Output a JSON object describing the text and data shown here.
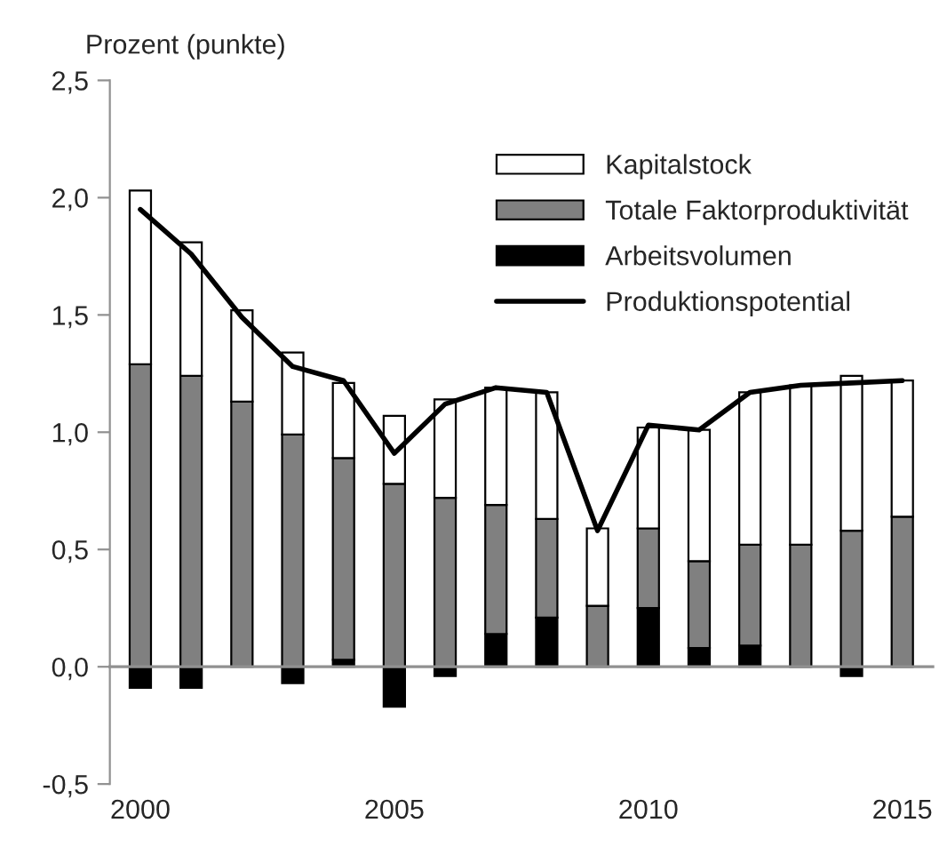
{
  "chart_data": {
    "type": "bar",
    "stacked": true,
    "ylabel": "Prozent (punkte)",
    "categories": [
      "2000",
      null,
      null,
      null,
      null,
      "2005",
      null,
      null,
      null,
      null,
      "2010",
      null,
      null,
      null,
      null,
      "2015"
    ],
    "series": [
      {
        "name": "Arbeitsvolumen",
        "color": "#000000",
        "values": [
          -0.09,
          -0.09,
          null,
          -0.07,
          0.03,
          -0.17,
          -0.04,
          0.14,
          0.21,
          null,
          0.25,
          0.08,
          0.09,
          0,
          -0.04,
          0
        ]
      },
      {
        "name": "Totale Faktorproduktivität",
        "color": "#808080",
        "values": [
          1.29,
          1.24,
          1.13,
          0.99,
          0.86,
          0.78,
          0.72,
          0.55,
          0.42,
          0.26,
          0.34,
          0.37,
          0.43,
          0.52,
          0.58,
          0.64
        ]
      },
      {
        "name": "Kapitalstock",
        "color": "#ffffff",
        "values": [
          0.74,
          0.57,
          0.39,
          0.35,
          0.32,
          0.29,
          0.42,
          0.5,
          0.54,
          0.33,
          0.43,
          0.56,
          0.65,
          0.68,
          0.66,
          0.58
        ]
      },
      {
        "name": "Produktionspotential",
        "type": "line",
        "color": "#000000",
        "values": [
          1.95,
          1.76,
          1.49,
          1.28,
          1.22,
          0.91,
          1.12,
          1.19,
          1.17,
          0.58,
          1.03,
          1.01,
          1.17,
          1.2,
          1.21,
          1.22
        ]
      }
    ],
    "ylim": [
      -0.5,
      2.5
    ],
    "yticks": [
      {
        "value": -0.5,
        "label": "-0,5"
      },
      {
        "value": 0,
        "label": "0,0"
      },
      {
        "value": 0.5,
        "label": "0,5"
      },
      {
        "value": 1,
        "label": "1,0"
      },
      {
        "value": 1.5,
        "label": "1,5"
      },
      {
        "value": 2,
        "label": "2,0"
      },
      {
        "value": 2.5,
        "label": "2,5"
      }
    ],
    "legend": "top right"
  }
}
